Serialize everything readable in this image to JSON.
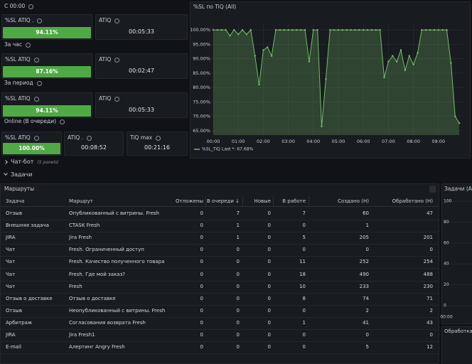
{
  "stat_groups": [
    {
      "label": "С 00:00",
      "panels": [
        {
          "title": "%SL ATIQ .",
          "value": "94.11%"
        },
        {
          "title": "ATIQ",
          "value": "00:05:33"
        }
      ]
    },
    {
      "label": "За час",
      "panels": [
        {
          "title": "%SL ATIQ",
          "value": "87.16%"
        },
        {
          "title": "ATIQ",
          "value": "00:02:47"
        }
      ]
    },
    {
      "label": "За период",
      "panels": [
        {
          "title": "%SL ATIQ",
          "value": "94.11%"
        },
        {
          "title": "ATIQ",
          "value": "00:05:33"
        }
      ]
    },
    {
      "label": "Online (В очереди)",
      "panels": [
        {
          "title": "%SL ATIQ",
          "value": "100.00%"
        },
        {
          "title": "ATIQ .",
          "value": "00:08:52"
        },
        {
          "title": "TiQ max",
          "value": "00:21:16"
        }
      ]
    }
  ],
  "rows": [
    {
      "title": "Чат-бот",
      "note": "(5 panels)"
    },
    {
      "title": "Задачи"
    }
  ],
  "chart_data": [
    {
      "type": "line",
      "title": "%SL по TiQ (All)",
      "x": [
        "00:00",
        "00:10",
        "00:20",
        "00:30",
        "00:40",
        "00:50",
        "01:00",
        "01:10",
        "01:20",
        "01:30",
        "01:40",
        "01:50",
        "02:00",
        "02:10",
        "02:20",
        "02:30",
        "02:40",
        "02:50",
        "03:00",
        "03:10",
        "03:20",
        "03:30",
        "03:40",
        "03:50",
        "04:00",
        "04:10",
        "04:20",
        "04:30",
        "04:40",
        "04:50",
        "05:00",
        "05:10",
        "05:20",
        "05:30",
        "05:40",
        "05:50",
        "06:00",
        "06:10",
        "06:20",
        "06:30",
        "06:40",
        "06:50",
        "07:00",
        "07:10",
        "07:20",
        "07:30",
        "07:40",
        "07:50",
        "08:00",
        "08:10",
        "08:20",
        "08:30",
        "08:40",
        "08:50",
        "09:00",
        "09:10",
        "09:20",
        "09:30",
        "09:40",
        "09:50"
      ],
      "series": [
        {
          "name": "%SL_TiQ",
          "color": "#73bf69",
          "legend_stat": "Last *: 67.68%",
          "values": [
            100,
            100,
            100,
            100,
            98,
            100,
            98.5,
            100,
            98.5,
            100,
            91,
            81,
            93,
            94,
            91,
            100,
            100,
            100,
            100,
            100,
            100,
            100,
            100,
            89,
            100,
            100,
            66.5,
            83,
            100,
            100,
            100,
            100,
            100,
            100,
            100,
            100,
            100,
            100,
            100,
            100,
            100,
            83.5,
            89,
            91,
            89,
            93,
            86,
            91,
            88,
            92,
            100,
            100,
            100,
            100,
            100,
            100,
            100,
            88.5,
            70,
            67.68
          ]
        }
      ],
      "xlim": [
        "00:00",
        "10:00"
      ],
      "xticks": [
        "00:00",
        "01:00",
        "02:00",
        "03:00",
        "04:00",
        "05:00",
        "06:00",
        "07:00",
        "08:00",
        "09:00"
      ],
      "ylim": [
        63.5,
        102
      ],
      "yticks": [
        {
          "value": 65,
          "label": "65.00%"
        },
        {
          "value": 70,
          "label": "70.00%"
        },
        {
          "value": 75,
          "label": "75.00%"
        },
        {
          "value": 80,
          "label": "80.00%"
        },
        {
          "value": 85,
          "label": "85.00%"
        },
        {
          "value": 90,
          "label": "90.00%"
        },
        {
          "value": 95,
          "label": "95.00%"
        },
        {
          "value": 100,
          "label": "100.00%"
        }
      ],
      "grid": true
    },
    {
      "type": "line",
      "title": "Задачи (All)",
      "ylim": [
        0,
        100
      ],
      "yticks": [
        0,
        20,
        40,
        60,
        80,
        100
      ],
      "xticks": [
        "00:00"
      ],
      "grid": true
    }
  ],
  "table": {
    "title": "Маршруты",
    "columns": [
      "Задача",
      "Маршрут",
      "Отложены",
      "В очереди ↓",
      "Новые",
      "В работе",
      "Создано (Н)",
      "Обработано (Н)"
    ],
    "rows": [
      [
        "Отзыв",
        "Опубликованный с витрины. Fresh",
        0,
        7,
        0,
        7,
        60,
        47
      ],
      [
        "Внешняя задача",
        "CTASK Fresh",
        0,
        1,
        0,
        0,
        1,
        null
      ],
      [
        "JIRA",
        "Jira Fresh",
        0,
        1,
        0,
        5,
        205,
        201
      ],
      [
        "Чат",
        "Fresh. Ограниченный доступ",
        0,
        0,
        0,
        0,
        0,
        0
      ],
      [
        "Чат",
        "Fresh. Качество полученного товара",
        0,
        0,
        0,
        11,
        252,
        254
      ],
      [
        "Чат",
        "Fresh. Где мой заказ?",
        0,
        0,
        0,
        18,
        490,
        488
      ],
      [
        "Чат",
        "Fresh",
        0,
        0,
        0,
        10,
        233,
        230
      ],
      [
        "Отзыв о доставке",
        "Отзыв о доставке",
        0,
        0,
        0,
        8,
        74,
        71
      ],
      [
        "Отзыв",
        "Неопубликованный с витрины. Fresh",
        0,
        0,
        0,
        0,
        2,
        2
      ],
      [
        "Арбитраж",
        "Согласования возврата Fresh",
        0,
        0,
        0,
        1,
        41,
        43
      ],
      [
        "JIRA",
        "Jira Fresh1",
        0,
        0,
        0,
        0,
        0,
        0
      ],
      [
        "E-mail",
        "Алертинг Angry Fresh",
        0,
        0,
        0,
        0,
        5,
        12
      ]
    ]
  },
  "side_panel": {
    "title": "Обработка ч"
  }
}
